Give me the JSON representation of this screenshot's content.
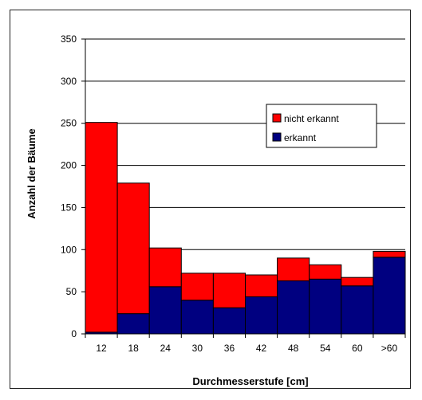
{
  "chart_data": {
    "type": "bar",
    "stacked": true,
    "categories": [
      "12",
      "18",
      "24",
      "30",
      "36",
      "42",
      "48",
      "54",
      "60",
      ">60"
    ],
    "series": [
      {
        "name": "erkannt",
        "color": "#000080",
        "values": [
          2,
          24,
          56,
          40,
          31,
          44,
          63,
          65,
          57,
          91
        ]
      },
      {
        "name": "nicht erkannt",
        "color": "#ff0000",
        "values": [
          249,
          155,
          46,
          32,
          41,
          26,
          27,
          17,
          10,
          7
        ]
      }
    ],
    "xlabel": "Durchmesserstufe [cm]",
    "ylabel": "Anzahl der Bäume",
    "ylim": [
      0,
      350
    ],
    "yticks": [
      0,
      50,
      100,
      150,
      200,
      250,
      300,
      350
    ],
    "grid": true,
    "legend_position": "top-right",
    "legend_order": [
      "nicht erkannt",
      "erkannt"
    ]
  }
}
